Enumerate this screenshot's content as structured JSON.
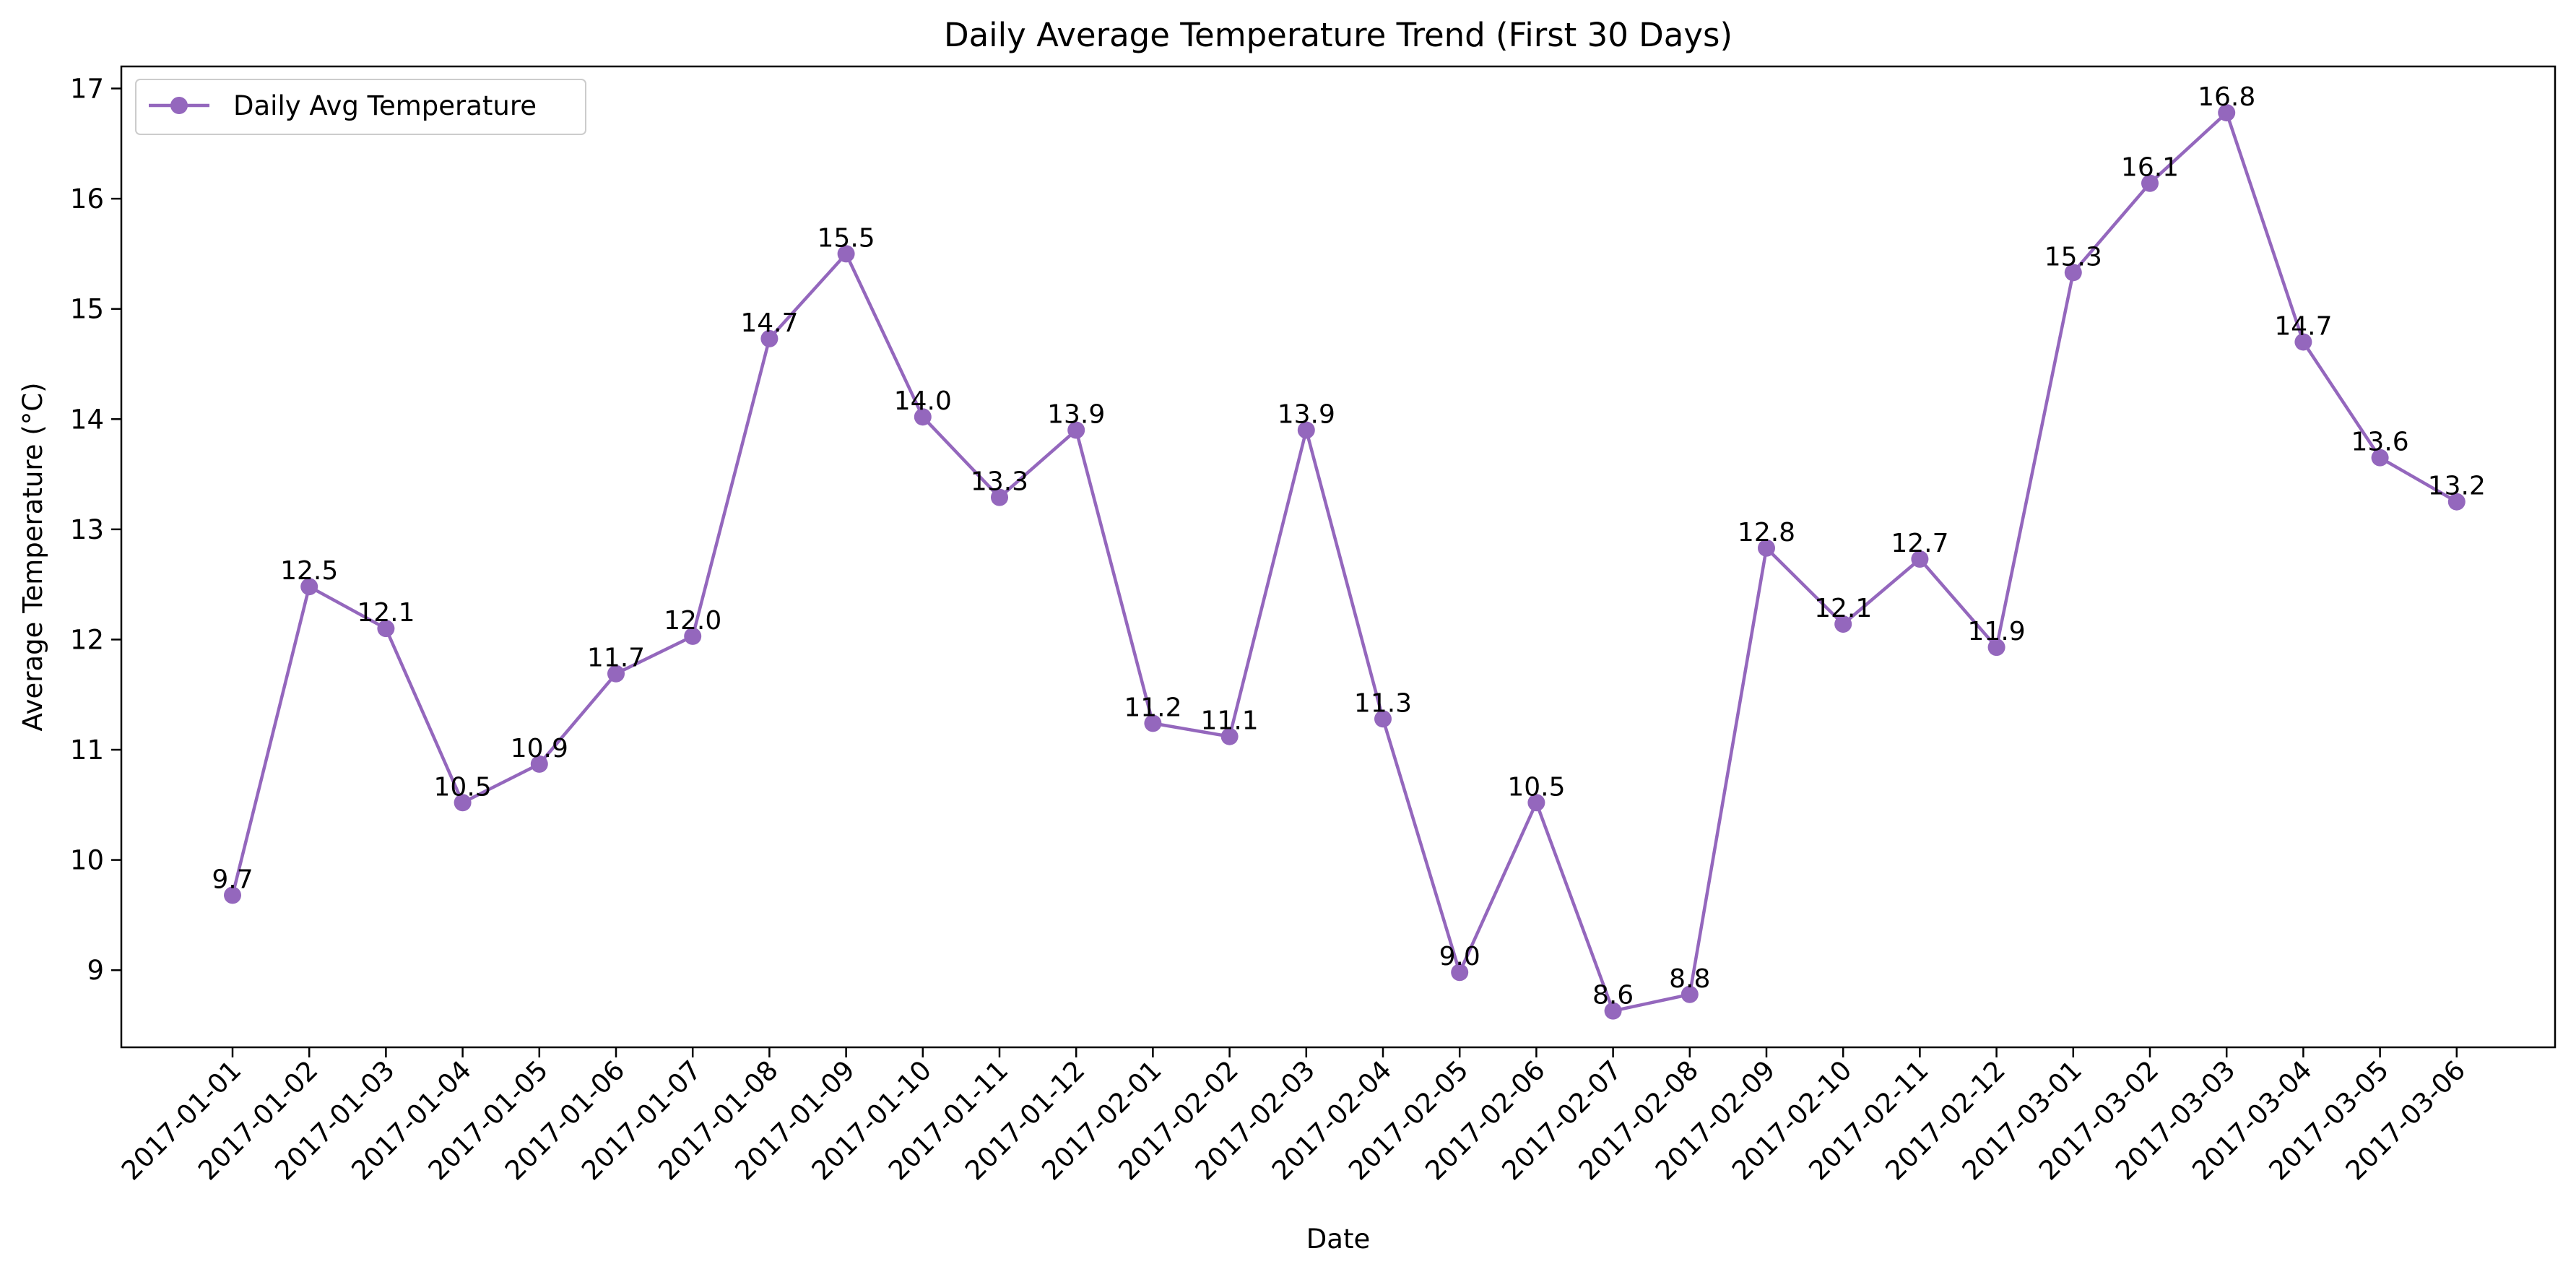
{
  "chart_data": {
    "type": "line",
    "title": "Daily Average Temperature Trend (First 30 Days)",
    "xlabel": "Date",
    "ylabel": "Average Temperature (°C)",
    "ylim": [
      8.3,
      17.2
    ],
    "yticks": [
      9,
      10,
      11,
      12,
      13,
      14,
      15,
      16,
      17
    ],
    "grid": false,
    "legend_position": "top-left",
    "categories": [
      "2017-01-01",
      "2017-01-02",
      "2017-01-03",
      "2017-01-04",
      "2017-01-05",
      "2017-01-06",
      "2017-01-07",
      "2017-01-08",
      "2017-01-09",
      "2017-01-10",
      "2017-01-11",
      "2017-01-12",
      "2017-02-01",
      "2017-02-02",
      "2017-02-03",
      "2017-02-04",
      "2017-02-05",
      "2017-02-06",
      "2017-02-07",
      "2017-02-08",
      "2017-02-09",
      "2017-02-10",
      "2017-02-11",
      "2017-02-12",
      "2017-03-01",
      "2017-03-02",
      "2017-03-03",
      "2017-03-04",
      "2017-03-05",
      "2017-03-06"
    ],
    "series": [
      {
        "name": "Daily Avg Temperature",
        "color": "#9467bd",
        "marker": "circle",
        "values": [
          9.68,
          12.48,
          12.1,
          10.52,
          10.87,
          11.69,
          12.03,
          14.73,
          15.5,
          14.02,
          13.29,
          13.9,
          11.24,
          11.12,
          13.9,
          11.28,
          8.98,
          10.52,
          8.63,
          8.78,
          12.83,
          12.14,
          12.73,
          11.93,
          15.33,
          16.14,
          16.78,
          14.7,
          13.65,
          13.25
        ],
        "labels": [
          "9.7",
          "12.5",
          "12.1",
          "10.5",
          "10.9",
          "11.7",
          "12.0",
          "14.7",
          "15.5",
          "14.0",
          "13.3",
          "13.9",
          "11.2",
          "11.1",
          "13.9",
          "11.3",
          "9.0",
          "10.5",
          "8.6",
          "8.8",
          "12.8",
          "12.1",
          "12.7",
          "11.9",
          "15.3",
          "16.1",
          "16.8",
          "14.7",
          "13.6",
          "13.2"
        ]
      }
    ]
  }
}
